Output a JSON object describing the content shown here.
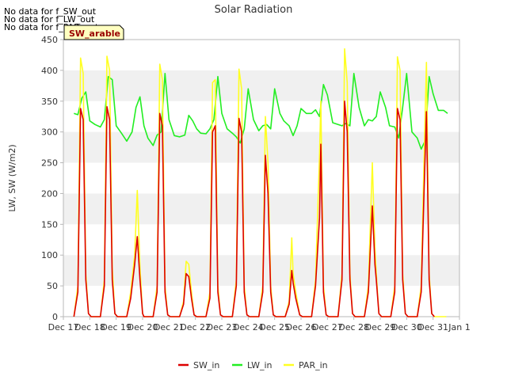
{
  "notes": [
    "No data for f_SW_out",
    "No data for f_LW_out",
    "No data for f_PAR_out"
  ],
  "badge": "SW_arable",
  "colors": {
    "sw_in": "#dd0000",
    "lw_in": "#22ee22",
    "par_in": "#ffff22",
    "band": "#f0f0f0",
    "axis": "#b8b8b8",
    "badge_bg": "#ffffc0",
    "badge_text": "#990000"
  },
  "chart_data": {
    "type": "line",
    "title": "Solar Radiation",
    "xlabel": "",
    "ylabel": "LW, SW (W/m2)",
    "ylim": [
      0,
      450
    ],
    "yticks": [
      0,
      50,
      100,
      150,
      200,
      250,
      300,
      350,
      400,
      450
    ],
    "xlim": [
      17,
      32
    ],
    "xticks": [
      {
        "v": 17,
        "label": "Dec 17"
      },
      {
        "v": 18,
        "label": "Dec 18"
      },
      {
        "v": 19,
        "label": "Dec 19"
      },
      {
        "v": 20,
        "label": "Dec 20"
      },
      {
        "v": 21,
        "label": "Dec 21"
      },
      {
        "v": 22,
        "label": "Dec 22"
      },
      {
        "v": 23,
        "label": "Dec 23"
      },
      {
        "v": 24,
        "label": "Dec 24"
      },
      {
        "v": 25,
        "label": "Dec 25"
      },
      {
        "v": 26,
        "label": "Dec 26"
      },
      {
        "v": 27,
        "label": "Dec 27"
      },
      {
        "v": 28,
        "label": "Dec 28"
      },
      {
        "v": 29,
        "label": "Dec 29"
      },
      {
        "v": 30,
        "label": "Dec 30"
      },
      {
        "v": 31,
        "label": "Dec 31"
      },
      {
        "v": 32,
        "label": "Jan 1"
      }
    ],
    "legend_position": "bottom-center",
    "series": [
      {
        "name": "SW_in",
        "x": [
          17.4,
          17.55,
          17.65,
          17.75,
          17.85,
          17.95,
          18.05,
          18.4,
          18.55,
          18.65,
          18.75,
          18.85,
          18.95,
          19.05,
          19.4,
          19.55,
          19.7,
          19.8,
          19.9,
          20.0,
          20.05,
          20.4,
          20.55,
          20.65,
          20.75,
          20.85,
          20.95,
          21.05,
          21.4,
          21.55,
          21.65,
          21.75,
          21.85,
          21.95,
          22.05,
          22.4,
          22.55,
          22.65,
          22.75,
          22.85,
          22.95,
          23.05,
          23.4,
          23.55,
          23.65,
          23.75,
          23.85,
          23.95,
          24.05,
          24.4,
          24.55,
          24.65,
          24.75,
          24.85,
          24.95,
          25.05,
          25.4,
          25.55,
          25.65,
          25.7,
          25.8,
          25.95,
          26.05,
          26.4,
          26.55,
          26.7,
          26.75,
          26.85,
          26.95,
          27.05,
          27.4,
          27.55,
          27.65,
          27.75,
          27.85,
          27.95,
          28.05,
          28.4,
          28.55,
          28.7,
          28.8,
          28.85,
          28.95,
          29.05,
          29.4,
          29.55,
          29.65,
          29.75,
          29.85,
          29.95,
          30.05,
          30.4,
          30.55,
          30.65,
          30.75,
          30.85,
          30.95,
          31.05
        ],
        "values": [
          0,
          40,
          338,
          320,
          60,
          5,
          0,
          0,
          50,
          341,
          320,
          60,
          5,
          0,
          0,
          30,
          85,
          130,
          60,
          5,
          0,
          0,
          40,
          330,
          310,
          40,
          3,
          0,
          0,
          20,
          70,
          65,
          30,
          3,
          0,
          0,
          30,
          300,
          310,
          40,
          3,
          0,
          0,
          50,
          322,
          300,
          40,
          3,
          0,
          0,
          40,
          262,
          200,
          40,
          3,
          0,
          0,
          20,
          75,
          55,
          30,
          3,
          0,
          0,
          50,
          160,
          280,
          40,
          3,
          0,
          0,
          60,
          350,
          300,
          60,
          5,
          0,
          0,
          40,
          180,
          85,
          60,
          5,
          0,
          0,
          40,
          338,
          320,
          60,
          5,
          0,
          0,
          40,
          190,
          333,
          60,
          5,
          0
        ]
      },
      {
        "name": "LW_in",
        "x": [
          17.4,
          17.55,
          17.7,
          17.85,
          18.0,
          18.2,
          18.4,
          18.55,
          18.7,
          18.85,
          19.0,
          19.2,
          19.4,
          19.6,
          19.75,
          19.9,
          20.05,
          20.2,
          20.4,
          20.55,
          20.7,
          20.85,
          21.0,
          21.2,
          21.4,
          21.6,
          21.75,
          21.9,
          22.05,
          22.2,
          22.4,
          22.55,
          22.7,
          22.85,
          23.0,
          23.2,
          23.4,
          23.55,
          23.7,
          23.85,
          24.0,
          24.2,
          24.4,
          24.55,
          24.7,
          24.85,
          25.0,
          25.2,
          25.35,
          25.55,
          25.7,
          25.85,
          26.0,
          26.2,
          26.4,
          26.55,
          26.7,
          26.85,
          27.0,
          27.2,
          27.4,
          27.55,
          27.7,
          27.85,
          28.0,
          28.2,
          28.4,
          28.55,
          28.7,
          28.85,
          29.0,
          29.2,
          29.35,
          29.55,
          29.7,
          29.85,
          30.0,
          30.2,
          30.4,
          30.55,
          30.7,
          30.85,
          31.0,
          31.2,
          31.4,
          31.55
        ],
        "values": [
          330,
          328,
          355,
          365,
          318,
          312,
          308,
          320,
          390,
          385,
          310,
          298,
          285,
          300,
          340,
          357,
          310,
          290,
          278,
          295,
          300,
          395,
          320,
          294,
          292,
          295,
          327,
          318,
          305,
          298,
          297,
          305,
          320,
          390,
          330,
          305,
          298,
          292,
          282,
          305,
          370,
          320,
          302,
          310,
          312,
          305,
          370,
          330,
          318,
          310,
          294,
          310,
          338,
          330,
          330,
          336,
          325,
          377,
          360,
          315,
          312,
          310,
          314,
          310,
          395,
          340,
          310,
          320,
          318,
          325,
          365,
          340,
          310,
          308,
          290,
          340,
          395,
          300,
          290,
          272,
          286,
          390,
          362,
          335,
          335,
          330
        ]
      },
      {
        "name": "PAR_in",
        "x": [
          17.4,
          17.55,
          17.65,
          17.75,
          17.85,
          17.95,
          18.05,
          18.4,
          18.55,
          18.65,
          18.75,
          18.85,
          18.95,
          19.05,
          19.4,
          19.55,
          19.7,
          19.8,
          19.9,
          20.0,
          20.05,
          20.4,
          20.55,
          20.65,
          20.75,
          20.85,
          20.95,
          21.05,
          21.4,
          21.55,
          21.65,
          21.75,
          21.85,
          21.95,
          22.05,
          22.4,
          22.55,
          22.65,
          22.75,
          22.85,
          22.95,
          23.05,
          23.4,
          23.55,
          23.65,
          23.75,
          23.85,
          23.95,
          24.05,
          24.4,
          24.55,
          24.65,
          24.75,
          24.85,
          24.95,
          25.05,
          25.4,
          25.55,
          25.65,
          25.7,
          25.8,
          25.95,
          26.05,
          26.4,
          26.55,
          26.7,
          26.75,
          26.85,
          26.95,
          27.05,
          27.4,
          27.55,
          27.65,
          27.75,
          27.85,
          27.95,
          28.05,
          28.4,
          28.55,
          28.7,
          28.8,
          28.85,
          28.95,
          29.05,
          29.4,
          29.55,
          29.65,
          29.75,
          29.85,
          29.95,
          30.05,
          30.4,
          30.55,
          30.65,
          30.75,
          30.85,
          30.95,
          31.05,
          31.5
        ],
        "values": [
          0,
          50,
          420,
          395,
          70,
          5,
          0,
          0,
          60,
          423,
          400,
          80,
          5,
          0,
          0,
          40,
          100,
          205,
          80,
          5,
          0,
          0,
          50,
          410,
          385,
          50,
          3,
          0,
          0,
          25,
          90,
          85,
          40,
          3,
          0,
          0,
          40,
          380,
          385,
          50,
          3,
          0,
          0,
          60,
          402,
          370,
          50,
          3,
          0,
          0,
          50,
          325,
          250,
          50,
          3,
          0,
          0,
          25,
          128,
          70,
          40,
          3,
          0,
          0,
          60,
          260,
          350,
          50,
          3,
          0,
          0,
          70,
          435,
          380,
          70,
          5,
          0,
          0,
          50,
          250,
          110,
          70,
          5,
          0,
          0,
          50,
          422,
          400,
          70,
          5,
          0,
          0,
          50,
          240,
          413,
          70,
          5,
          0,
          0
        ]
      }
    ]
  }
}
